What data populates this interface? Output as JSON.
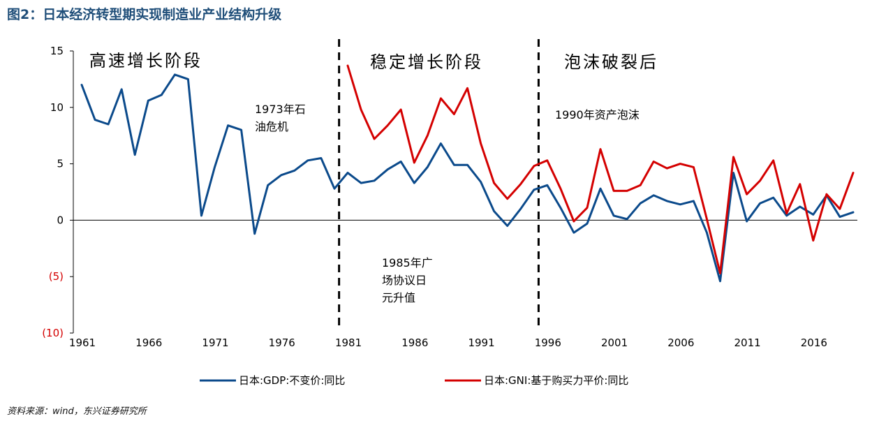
{
  "title": "图2：日本经济转型期实现制造业产业结构升级",
  "source": "资料来源：wind，东兴证券研究所",
  "chart_data": {
    "type": "line",
    "x": [
      1961,
      1962,
      1963,
      1964,
      1965,
      1966,
      1967,
      1968,
      1969,
      1970,
      1971,
      1972,
      1973,
      1974,
      1975,
      1976,
      1977,
      1978,
      1979,
      1980,
      1981,
      1982,
      1983,
      1984,
      1985,
      1986,
      1987,
      1988,
      1989,
      1990,
      1991,
      1992,
      1993,
      1994,
      1995,
      1996,
      1997,
      1998,
      1999,
      2000,
      2001,
      2002,
      2003,
      2004,
      2005,
      2006,
      2007,
      2008,
      2009,
      2010,
      2011,
      2012,
      2013,
      2014,
      2015,
      2016,
      2017,
      2018,
      2019
    ],
    "series": [
      {
        "name": "日本:GDP:不变价:同比",
        "color": "#0b4a8b",
        "values": [
          12.0,
          8.9,
          8.5,
          11.6,
          5.8,
          10.6,
          11.1,
          12.9,
          12.5,
          0.4,
          4.7,
          8.4,
          8.0,
          -1.2,
          3.1,
          4.0,
          4.4,
          5.3,
          5.5,
          2.8,
          4.2,
          3.3,
          3.5,
          4.5,
          5.2,
          3.3,
          4.7,
          6.8,
          4.9,
          4.9,
          3.4,
          0.8,
          -0.5,
          1.0,
          2.7,
          3.1,
          1.1,
          -1.1,
          -0.3,
          2.8,
          0.4,
          0.1,
          1.5,
          2.2,
          1.7,
          1.4,
          1.7,
          -1.1,
          -5.4,
          4.2,
          -0.1,
          1.5,
          2.0,
          0.4,
          1.2,
          0.5,
          2.2,
          0.3,
          0.7
        ]
      },
      {
        "name": "日本:GNI:基于购买力平价:同比",
        "color": "#d40000",
        "values": [
          null,
          null,
          null,
          null,
          null,
          null,
          null,
          null,
          null,
          null,
          null,
          null,
          null,
          null,
          null,
          null,
          null,
          null,
          null,
          null,
          13.7,
          9.8,
          7.2,
          8.4,
          9.8,
          5.1,
          7.5,
          10.8,
          9.4,
          11.7,
          6.8,
          3.3,
          1.9,
          3.2,
          4.8,
          5.3,
          2.8,
          -0.1,
          1.1,
          6.3,
          2.6,
          2.6,
          3.1,
          5.2,
          4.6,
          5.0,
          4.7,
          0.1,
          -4.7,
          5.6,
          2.3,
          3.5,
          5.3,
          0.6,
          3.2,
          -1.8,
          2.3,
          1.0,
          4.2
        ]
      }
    ],
    "ylim": [
      -10,
      15
    ],
    "yticks": [
      -10,
      -5,
      0,
      5,
      10,
      15
    ],
    "ytick_labels": [
      "(10)",
      "(5)",
      "0",
      "5",
      "10",
      "15"
    ],
    "xticks": [
      1961,
      1966,
      1971,
      1976,
      1981,
      1986,
      1991,
      1996,
      2001,
      2006,
      2011,
      2016
    ],
    "dividers": [
      1980,
      1995
    ],
    "phases": [
      "高速增长阶段",
      "稳定增长阶段",
      "泡沫破裂后"
    ],
    "annotations": [
      {
        "lines": [
          "1973年石",
          "油危机"
        ]
      },
      {
        "lines": [
          "1985年广",
          "场协议日",
          "元升值"
        ]
      },
      {
        "lines": [
          "1990年资产泡沫"
        ]
      }
    ],
    "legend_position": "bottom"
  }
}
